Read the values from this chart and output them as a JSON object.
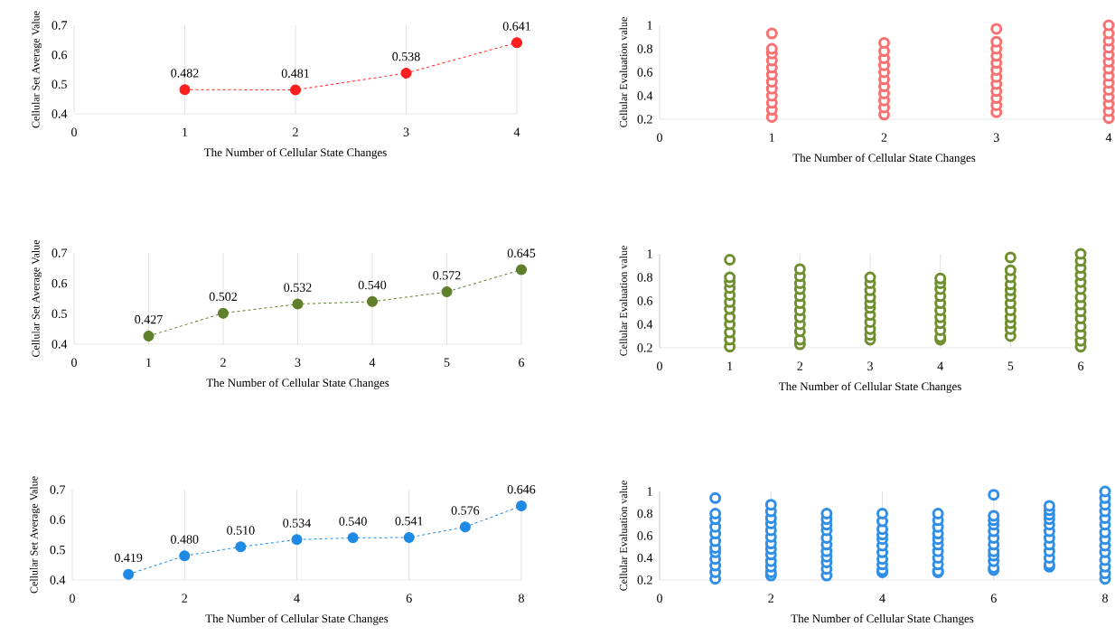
{
  "chart_data": [
    {
      "type": "line",
      "xlabel": "The Number of Cellular State Changes",
      "ylabel": "Cellular Set Average Value",
      "x": [
        1,
        2,
        3,
        4
      ],
      "values": [
        0.482,
        0.481,
        0.538,
        0.641
      ],
      "value_labels": [
        "0.482",
        "0.481",
        "0.538",
        "0.641"
      ],
      "color": "#ff1f1f",
      "xlim": [
        0,
        4
      ],
      "xticks": [
        0,
        1,
        2,
        3,
        4
      ],
      "ylim": [
        0.4,
        0.7
      ],
      "yticks": [
        0.4,
        0.5,
        0.6,
        0.7
      ],
      "grid": "x",
      "marker": "circle",
      "line_style": "dashed"
    },
    {
      "type": "scatter",
      "xlabel": "The Number of Cellular State Changes",
      "ylabel": "Cellular Evaluation value",
      "color": "#f87070",
      "x": [
        1,
        1,
        1,
        1,
        1,
        1,
        1,
        1,
        1,
        1,
        1,
        1,
        2,
        2,
        2,
        2,
        2,
        2,
        2,
        2,
        2,
        2,
        2,
        3,
        3,
        3,
        3,
        3,
        3,
        3,
        3,
        3,
        3,
        3,
        3,
        4,
        4,
        4,
        4,
        4,
        4,
        4,
        4,
        4,
        4,
        4,
        4,
        4,
        4
      ],
      "values": [
        0.93,
        0.22,
        0.28,
        0.34,
        0.4,
        0.46,
        0.52,
        0.58,
        0.64,
        0.7,
        0.76,
        0.8,
        0.24,
        0.3,
        0.36,
        0.42,
        0.48,
        0.54,
        0.6,
        0.66,
        0.72,
        0.78,
        0.85,
        0.97,
        0.26,
        0.32,
        0.38,
        0.44,
        0.5,
        0.56,
        0.62,
        0.68,
        0.74,
        0.8,
        0.86,
        0.21,
        0.27,
        0.33,
        0.39,
        0.45,
        0.51,
        0.57,
        0.63,
        0.69,
        0.75,
        0.81,
        0.87,
        0.93,
        1.0
      ],
      "xlim": [
        0,
        4
      ],
      "xticks": [
        0,
        1,
        2,
        3,
        4
      ],
      "ylim": [
        0.2,
        1.0
      ],
      "yticks": [
        0.2,
        0.4,
        0.6,
        0.8,
        1
      ],
      "marker": "circle"
    },
    {
      "type": "line",
      "xlabel": "The Number of Cellular State Changes",
      "ylabel": "Cellular Set Average Value",
      "x": [
        1,
        2,
        3,
        4,
        5,
        6
      ],
      "values": [
        0.427,
        0.502,
        0.532,
        0.54,
        0.572,
        0.645
      ],
      "value_labels": [
        "0.427",
        "0.502",
        "0.532",
        "0.540",
        "0.572",
        "0.645"
      ],
      "color": "#5f7f2a",
      "xlim": [
        0,
        6
      ],
      "xticks": [
        0,
        1,
        2,
        3,
        4,
        5,
        6
      ],
      "ylim": [
        0.4,
        0.7
      ],
      "yticks": [
        0.4,
        0.5,
        0.6,
        0.7
      ],
      "grid": "x",
      "marker": "circle",
      "line_style": "dashed"
    },
    {
      "type": "scatter",
      "xlabel": "The Number of Cellular State Changes",
      "ylabel": "Cellular Evaluation value",
      "color": "#6f8f2f",
      "x": [
        1,
        1,
        1,
        1,
        1,
        1,
        1,
        1,
        1,
        1,
        1,
        1,
        2,
        2,
        2,
        2,
        2,
        2,
        2,
        2,
        2,
        2,
        2,
        2,
        3,
        3,
        3,
        3,
        3,
        3,
        3,
        3,
        3,
        3,
        3,
        4,
        4,
        4,
        4,
        4,
        4,
        4,
        4,
        4,
        4,
        4,
        5,
        5,
        5,
        5,
        5,
        5,
        5,
        5,
        5,
        5,
        5,
        5,
        6,
        6,
        6,
        6,
        6,
        6,
        6,
        6,
        6,
        6,
        6,
        6,
        6,
        6
      ],
      "values": [
        0.95,
        0.21,
        0.27,
        0.33,
        0.4,
        0.46,
        0.53,
        0.59,
        0.65,
        0.71,
        0.76,
        0.8,
        0.23,
        0.27,
        0.34,
        0.4,
        0.46,
        0.52,
        0.58,
        0.64,
        0.7,
        0.75,
        0.81,
        0.87,
        0.27,
        0.31,
        0.36,
        0.42,
        0.48,
        0.54,
        0.58,
        0.63,
        0.69,
        0.75,
        0.8,
        0.27,
        0.29,
        0.35,
        0.41,
        0.46,
        0.52,
        0.58,
        0.64,
        0.7,
        0.75,
        0.79,
        0.97,
        0.3,
        0.36,
        0.41,
        0.46,
        0.52,
        0.58,
        0.64,
        0.69,
        0.74,
        0.8,
        0.86,
        0.21,
        0.26,
        0.32,
        0.38,
        0.45,
        0.51,
        0.57,
        0.63,
        0.7,
        0.76,
        0.82,
        0.88,
        0.94,
        1.0
      ],
      "xlim": [
        0,
        6
      ],
      "xticks": [
        0,
        1,
        2,
        3,
        4,
        5,
        6
      ],
      "ylim": [
        0.2,
        1.0
      ],
      "yticks": [
        0.2,
        0.4,
        0.6,
        0.8,
        1
      ],
      "grid": "x",
      "marker": "circle"
    },
    {
      "type": "line",
      "xlabel": "The Number of Cellular State Changes",
      "ylabel": "Cellular Set Average Value",
      "x": [
        1,
        2,
        3,
        4,
        5,
        6,
        7,
        8
      ],
      "values": [
        0.419,
        0.48,
        0.51,
        0.534,
        0.54,
        0.541,
        0.576,
        0.646
      ],
      "value_labels": [
        "0.419",
        "0.480",
        "0.510",
        "0.534",
        "0.540",
        "0.541",
        "0.576",
        "0.646"
      ],
      "color": "#1e8ae6",
      "xlim": [
        0,
        8
      ],
      "xticks": [
        0,
        2,
        4,
        6,
        8
      ],
      "ylim": [
        0.4,
        0.7
      ],
      "yticks": [
        0.4,
        0.5,
        0.6,
        0.7
      ],
      "grid": "x",
      "marker": "circle",
      "line_style": "dashed"
    },
    {
      "type": "scatter",
      "xlabel": "The Number of Cellular State Changes",
      "ylabel": "Cellular Evaluation value",
      "color": "#2f8fe8",
      "x": [
        1,
        1,
        1,
        1,
        1,
        1,
        1,
        1,
        1,
        1,
        1,
        1,
        2,
        2,
        2,
        2,
        2,
        2,
        2,
        2,
        2,
        2,
        2,
        2,
        2,
        3,
        3,
        3,
        3,
        3,
        3,
        3,
        3,
        3,
        3,
        3,
        4,
        4,
        4,
        4,
        4,
        4,
        4,
        4,
        4,
        4,
        4,
        5,
        5,
        5,
        5,
        5,
        5,
        5,
        5,
        5,
        5,
        5,
        6,
        6,
        6,
        6,
        6,
        6,
        6,
        6,
        6,
        6,
        6,
        6,
        7,
        7,
        7,
        7,
        7,
        7,
        7,
        7,
        7,
        7,
        7,
        7,
        8,
        8,
        8,
        8,
        8,
        8,
        8,
        8,
        8,
        8,
        8,
        8,
        8,
        8
      ],
      "values": [
        0.94,
        0.21,
        0.27,
        0.33,
        0.39,
        0.45,
        0.49,
        0.55,
        0.62,
        0.68,
        0.75,
        0.8,
        0.24,
        0.27,
        0.32,
        0.37,
        0.43,
        0.48,
        0.53,
        0.59,
        0.65,
        0.71,
        0.76,
        0.82,
        0.88,
        0.24,
        0.3,
        0.36,
        0.41,
        0.46,
        0.52,
        0.58,
        0.65,
        0.7,
        0.75,
        0.8,
        0.27,
        0.29,
        0.34,
        0.39,
        0.45,
        0.51,
        0.57,
        0.61,
        0.66,
        0.73,
        0.8,
        0.27,
        0.28,
        0.34,
        0.4,
        0.46,
        0.52,
        0.57,
        0.62,
        0.68,
        0.74,
        0.8,
        0.97,
        0.29,
        0.31,
        0.37,
        0.42,
        0.46,
        0.52,
        0.58,
        0.64,
        0.7,
        0.74,
        0.78,
        0.32,
        0.34,
        0.4,
        0.46,
        0.52,
        0.58,
        0.64,
        0.7,
        0.75,
        0.79,
        0.83,
        0.87,
        0.21,
        0.26,
        0.32,
        0.38,
        0.45,
        0.51,
        0.57,
        0.63,
        0.7,
        0.76,
        0.82,
        0.88,
        0.94,
        1.0
      ],
      "xlim": [
        0,
        8
      ],
      "xticks": [
        0,
        2,
        4,
        6,
        8
      ],
      "ylim": [
        0.2,
        1.0
      ],
      "yticks": [
        0.2,
        0.4,
        0.6,
        0.8,
        1
      ],
      "grid": "x",
      "marker": "circle"
    }
  ]
}
